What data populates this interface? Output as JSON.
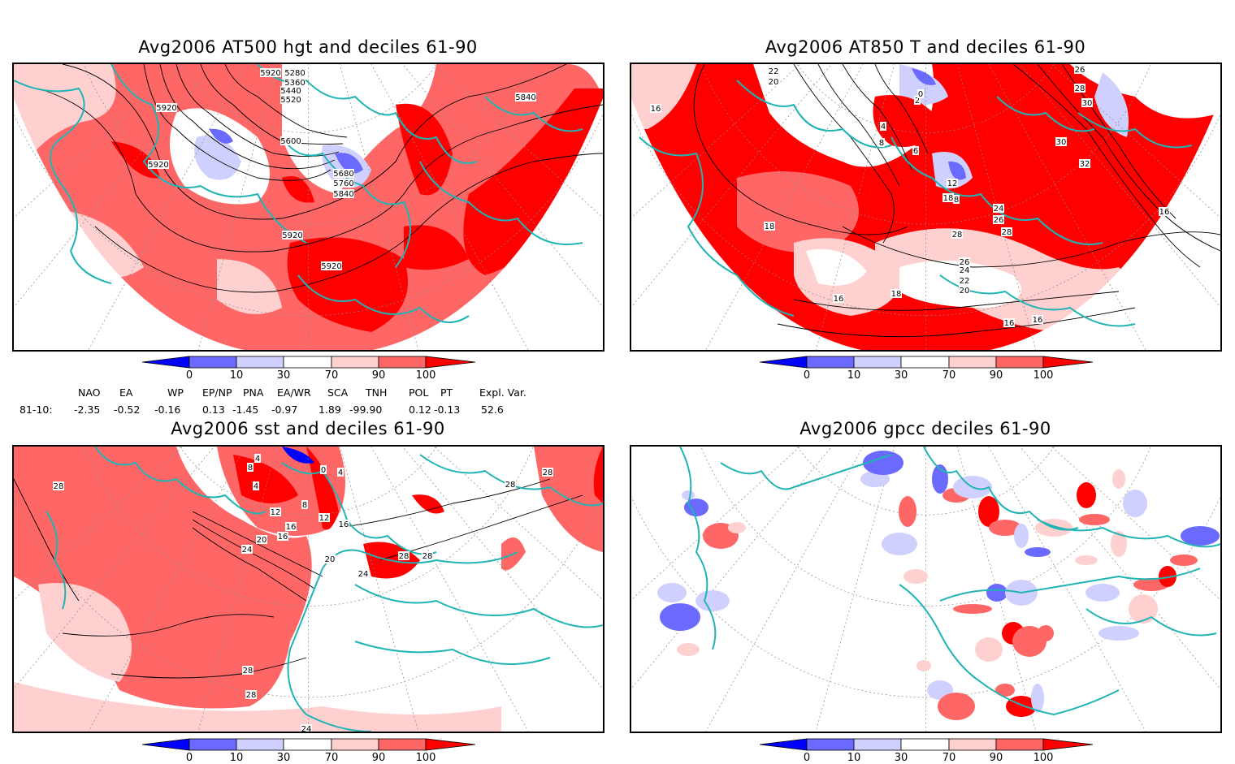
{
  "panels": [
    {
      "title": "Avg2006 AT500 hgt and deciles 61-90",
      "contour_labels": [
        "5280",
        "5360",
        "5440",
        "5520",
        "5600",
        "5680",
        "5760",
        "5840",
        "5920",
        "5920",
        "5920",
        "5920",
        "5920",
        "5840"
      ]
    },
    {
      "title": "Avg2006 AT850 T and deciles 61-90",
      "contour_labels": [
        "22",
        "20",
        "16",
        "18",
        "16",
        "18",
        "16",
        "4",
        "8",
        "2",
        "0",
        "6",
        "8",
        "18",
        "12",
        "24",
        "26",
        "28",
        "30",
        "32",
        "26",
        "28",
        "30",
        "28",
        "26",
        "24",
        "22",
        "20",
        "16",
        "16"
      ]
    },
    {
      "title": "Avg2006 sst and deciles 61-90",
      "contour_labels": [
        "28",
        "4",
        "8",
        "12",
        "16",
        "20",
        "24",
        "28",
        "28",
        "28",
        "28",
        "24",
        "20",
        "16",
        "8",
        "4",
        "0",
        "4",
        "12",
        "16",
        "28",
        "28",
        "24"
      ]
    },
    {
      "title": "Avg2006 gpcc deciles 61-90",
      "contour_labels": []
    }
  ],
  "colorbar": {
    "labels": [
      "0",
      "10",
      "30",
      "70",
      "90",
      "100"
    ],
    "colors": {
      "lt0": "#0000ff",
      "b10": "#6a6aff",
      "b30": "#d0d0ff",
      "mid": "#ffffff",
      "r70": "#ffd0d0",
      "r90": "#ff6666",
      "gt100": "#ff0000"
    }
  },
  "indices": {
    "headers": [
      "NAO",
      "EA",
      "WP",
      "EP/NP",
      "PNA",
      "EA/WR",
      "SCA",
      "TNH",
      "POL",
      "PT",
      "Expl. Var."
    ],
    "row_label": "81-10:",
    "values": [
      "-2.35",
      "-0.52",
      "-0.16",
      "0.13",
      "-1.45",
      "-0.97",
      "1.89",
      "-99.90",
      "0.12",
      "-0.13",
      "52.6"
    ]
  },
  "colors": {
    "coast": "#20b4b4",
    "contour": "#000000",
    "grid": "#888888"
  }
}
